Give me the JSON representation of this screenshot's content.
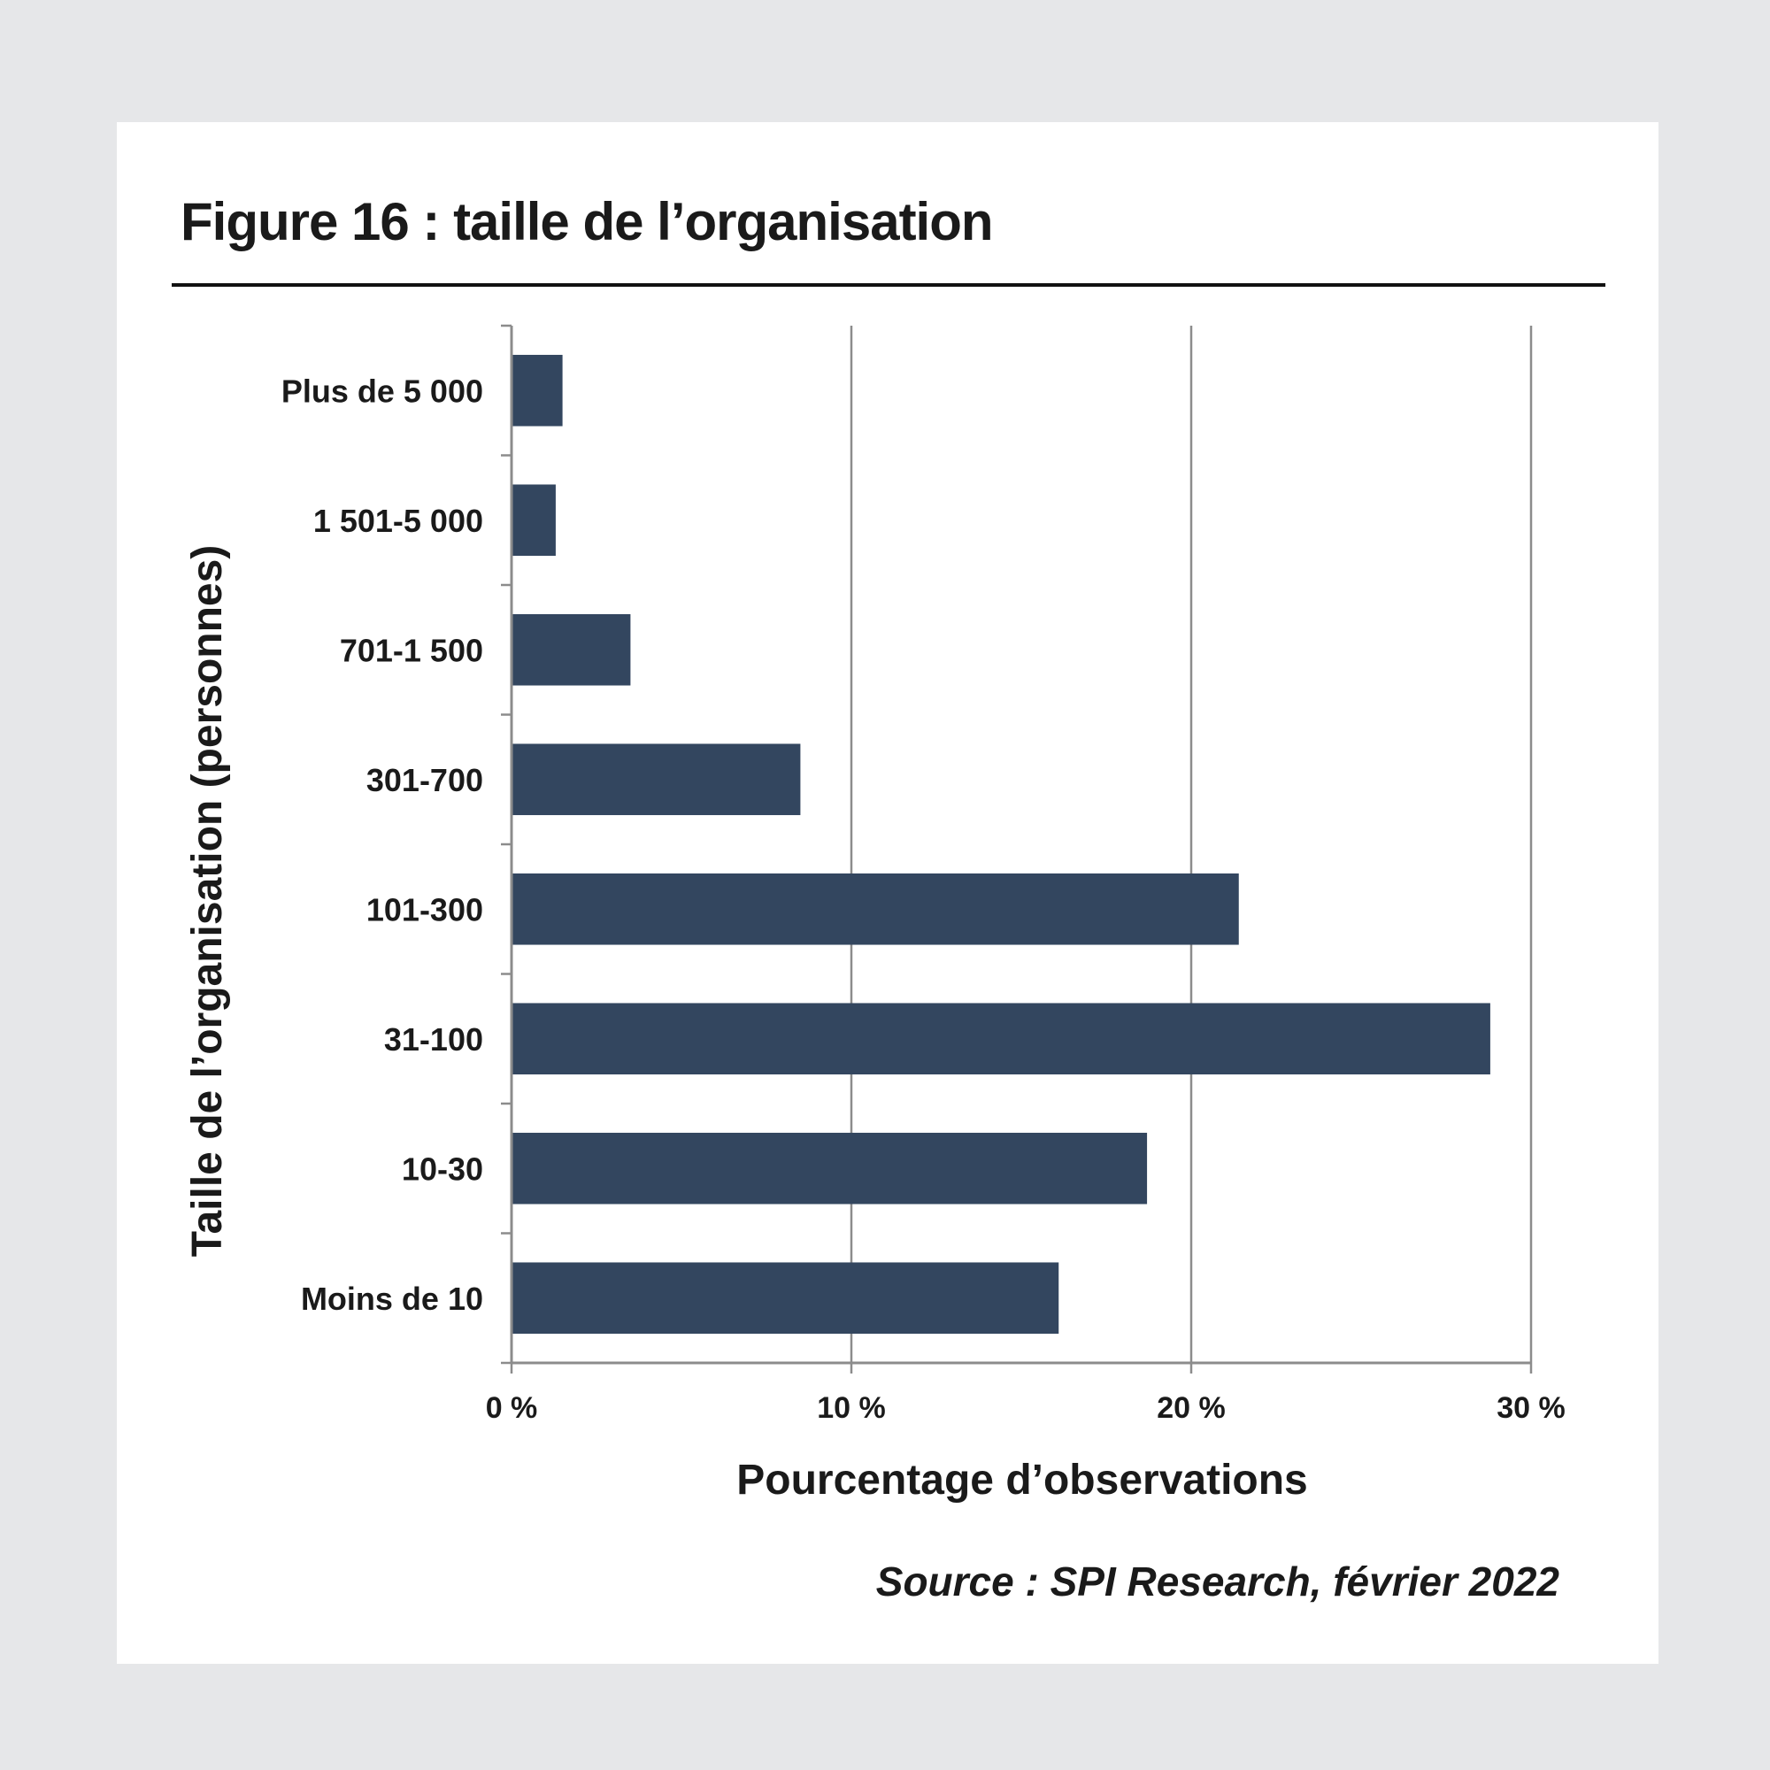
{
  "figure": {
    "title": "Figure 16 : taille de l’organisation",
    "source": "Source : SPI Research, février 2022"
  },
  "colors": {
    "bar": "#33465f",
    "grid": "#8c8c8c",
    "text": "#1a1a1a",
    "background": "#e6e7e9",
    "card": "#ffffff"
  },
  "chart_data": {
    "type": "bar",
    "orientation": "horizontal",
    "title": "Figure 16 : taille de l’organisation",
    "xlabel": "Pourcentage d’observations",
    "ylabel": "Taille de l’organisation (personnes)",
    "categories": [
      "Plus de 5 000",
      "1 501-5 000",
      "701-1 500",
      "301-700",
      "101-300",
      "31-100",
      "10-30",
      "Moins de 10"
    ],
    "values": [
      1.5,
      1.3,
      3.5,
      8.5,
      21.4,
      28.8,
      18.7,
      16.1
    ],
    "xlim": [
      0,
      30
    ],
    "xticks": [
      0,
      10,
      20,
      30
    ],
    "xtick_labels": [
      "0 %",
      "10 %",
      "20 %",
      "30 %"
    ],
    "grid": "vertical",
    "legend": "none"
  }
}
